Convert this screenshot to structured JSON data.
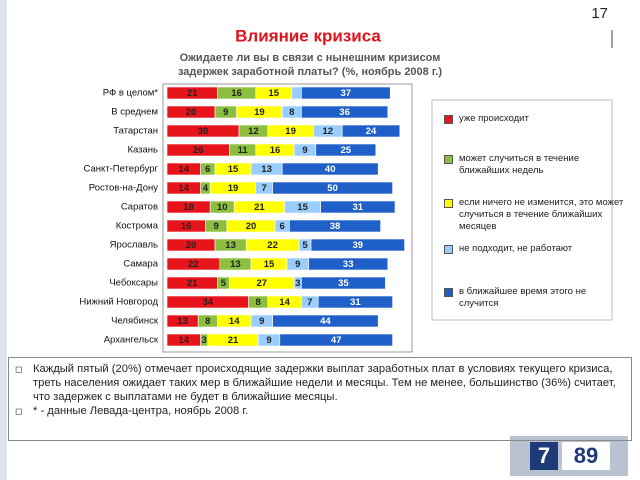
{
  "slide_number": "17",
  "notes": [
    "Каждый пятый (20%) отмечает происходящие задержки выплат заработных плат в условиях текущего кризиса, треть населения ожидает таких мер в ближайшие недели и месяцы. Тем не менее, большинство (36%) считает, что задержек с выплатами не будет в ближайшие месяцы.",
    "* - данные Левада-центра, ноябрь 2008 г."
  ],
  "logo": [
    "7",
    "89"
  ],
  "chart_data": {
    "type": "stacked-bar-horizontal",
    "title": "Влияние кризиса",
    "subtitle": [
      "Ожидаете ли вы в связи с нынешним кризисом",
      "задержек заработной платы? (%,  ноябрь  2008 г.)"
    ],
    "categories": [
      "РФ в целом*",
      "В среднем",
      "Татарстан",
      "Казань",
      "Санкт-Петербург",
      "Ростов-на-Дону",
      "Саратов",
      "Кострома",
      "Ярославль",
      "Самара",
      "Чебоксары",
      "Нижний Новгород",
      "Челябинск",
      "Архангельск"
    ],
    "xlim": [
      0,
      100
    ],
    "series": [
      {
        "name": "уже происходит",
        "color": "#e8141c",
        "values": [
          21,
          20,
          30,
          26,
          14,
          14,
          18,
          16,
          20,
          22,
          21,
          34,
          13,
          14
        ]
      },
      {
        "name": "может случиться в течение ближайших недель",
        "color": "#8cbf3f",
        "values": [
          16,
          9,
          12,
          11,
          6,
          4,
          10,
          9,
          13,
          13,
          5,
          8,
          8,
          3
        ]
      },
      {
        "name": "если ничего не изменится, это может случиться в течение ближайших месяцев",
        "color": "#ffff00",
        "values": [
          15,
          19,
          19,
          16,
          15,
          19,
          21,
          20,
          22,
          15,
          27,
          14,
          14,
          21
        ]
      },
      {
        "name": "не подходит, не работают",
        "color": "#99ccff",
        "values": [
          4,
          8,
          12,
          9,
          13,
          7,
          15,
          6,
          5,
          9,
          3,
          7,
          9,
          9
        ],
        "value_labels": [
          null,
          "8",
          "12",
          "9",
          "13",
          "7",
          "15",
          "6",
          "5",
          "9",
          "3",
          "7",
          "9",
          "9"
        ]
      },
      {
        "name": "в ближайшее время этого не случится",
        "color": "#1f5fc8",
        "values": [
          37,
          36,
          24,
          25,
          40,
          50,
          31,
          38,
          39,
          33,
          35,
          31,
          44,
          47
        ]
      }
    ],
    "legend": "right"
  }
}
